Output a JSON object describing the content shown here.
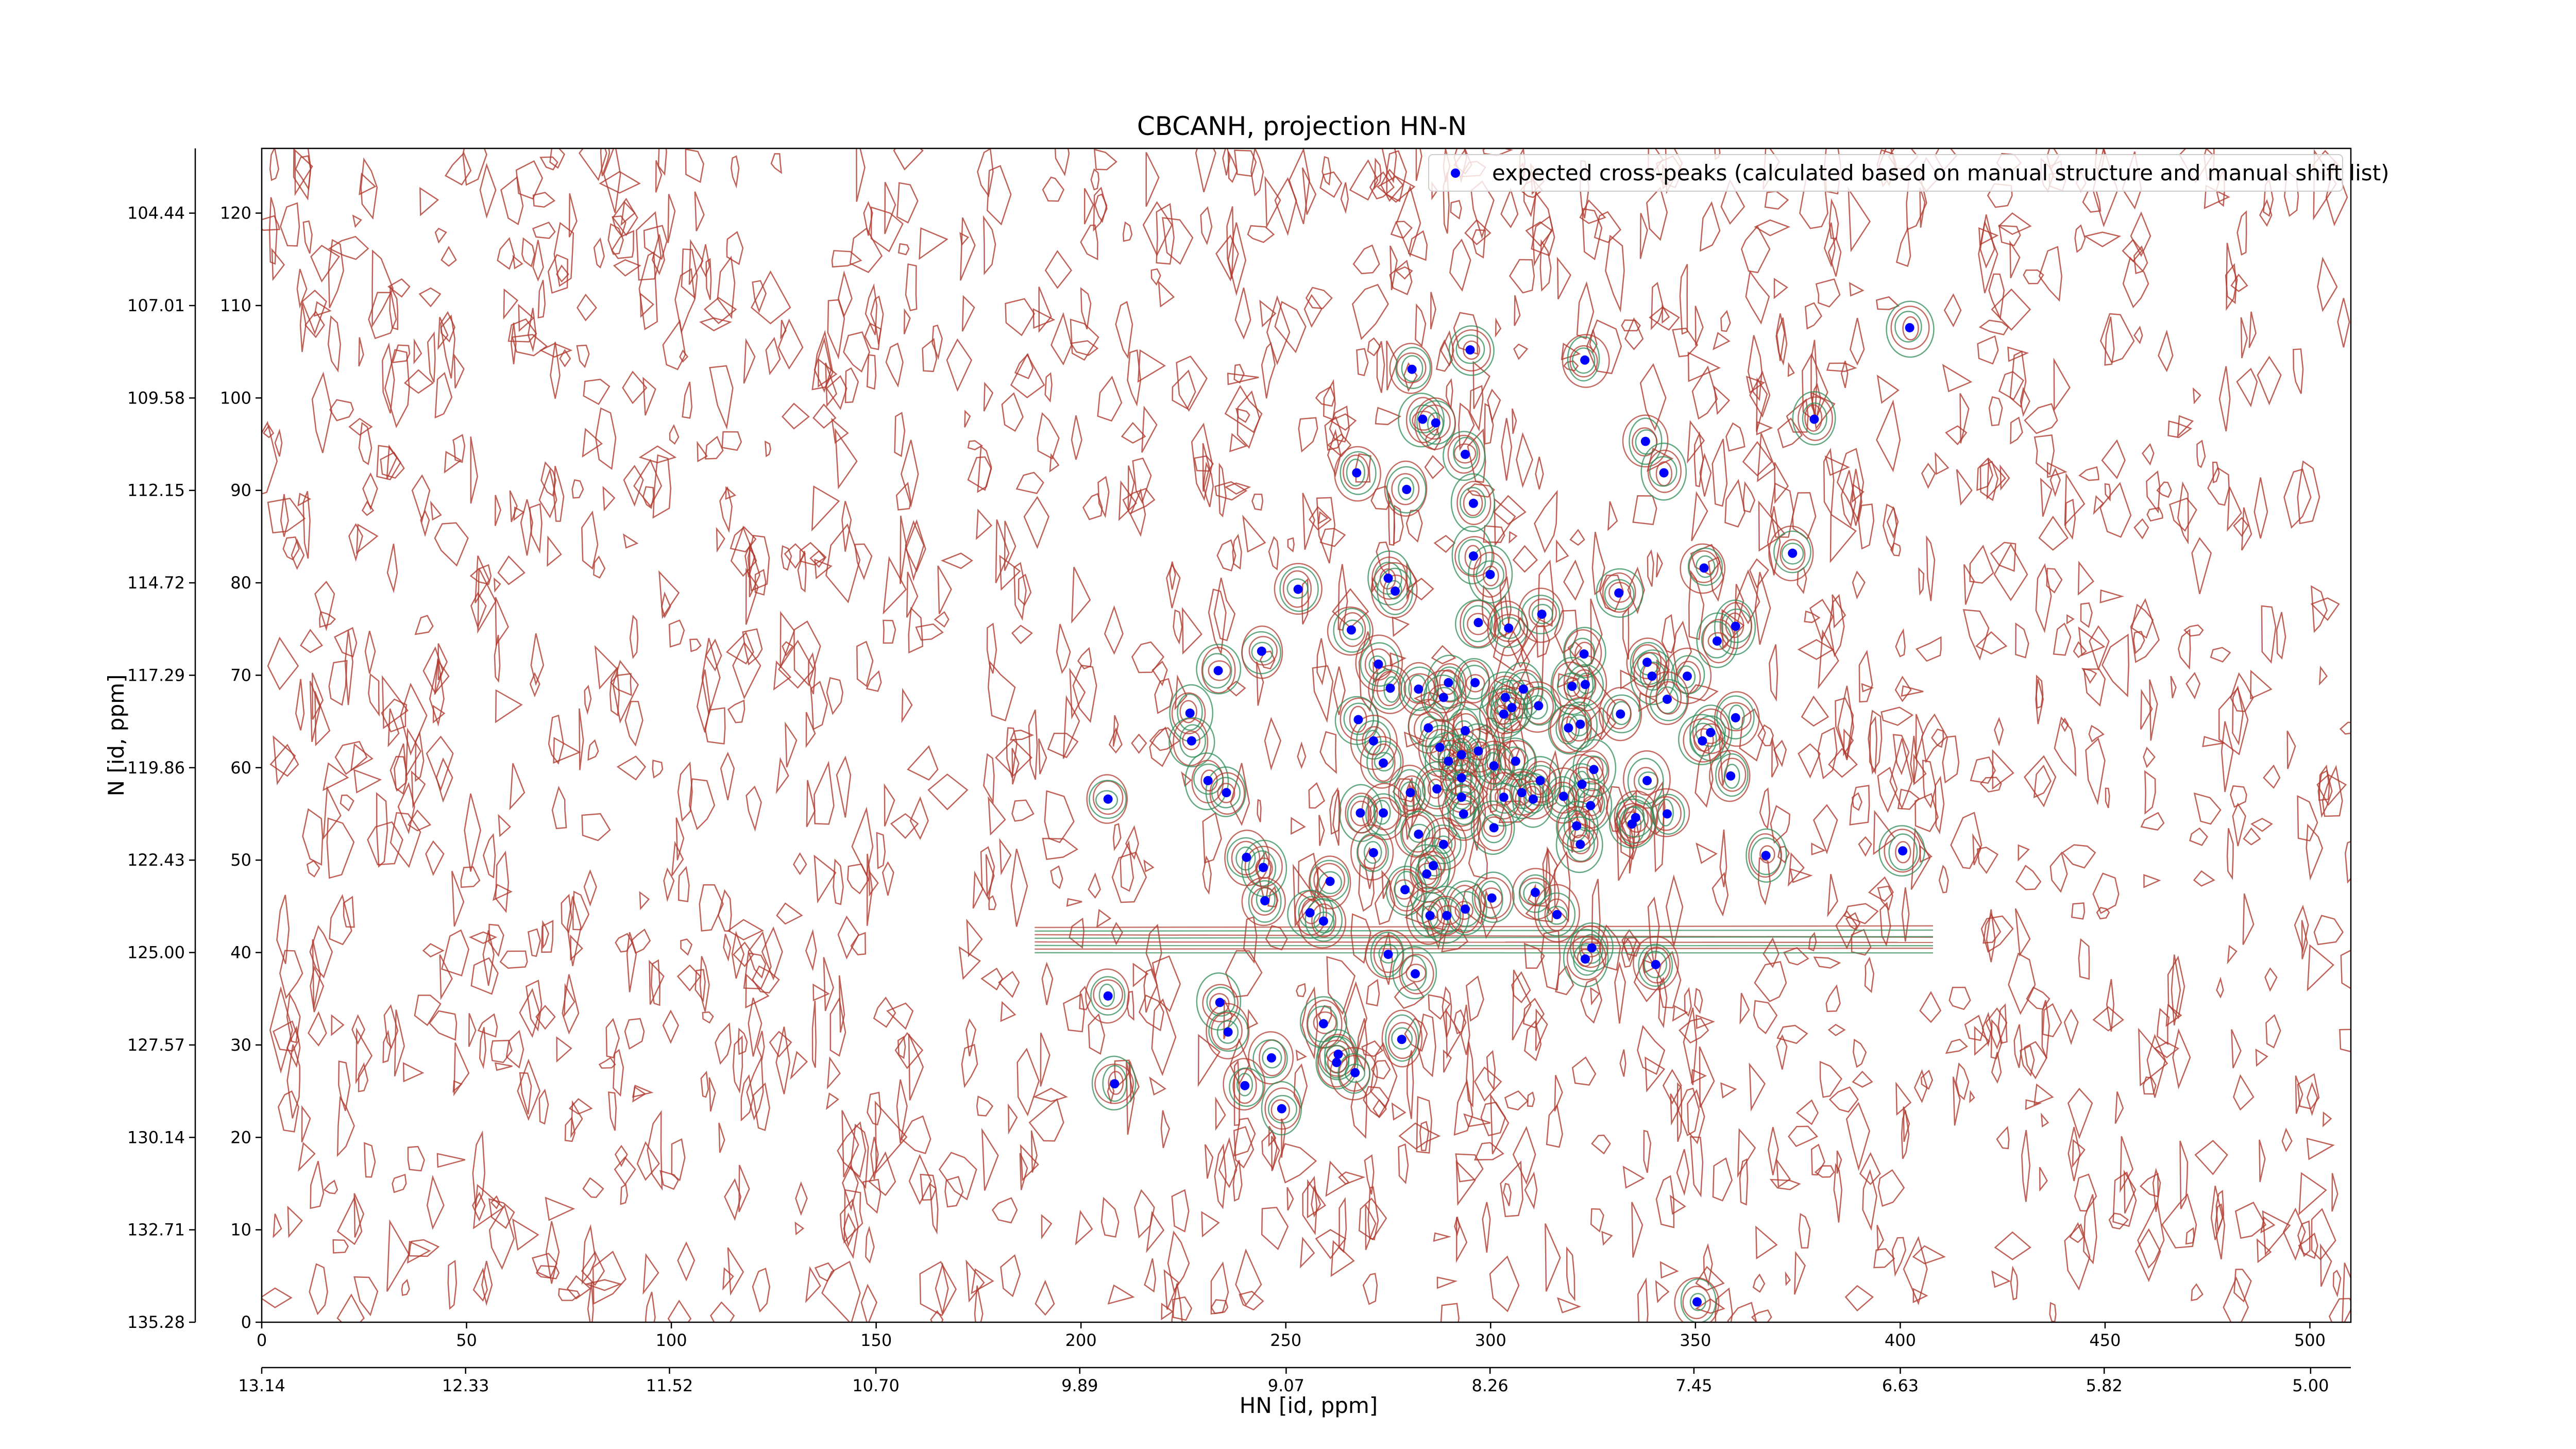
{
  "chart_data": {
    "type": "scatter",
    "title": "CBCANH, projection HN-N",
    "xlabel": "HN [id, ppm]",
    "ylabel": "N [id, ppm]",
    "legend": "upper right",
    "xlim": [
      0,
      510
    ],
    "ylim": [
      0,
      127
    ],
    "xticks": [
      0,
      50,
      100,
      150,
      200,
      250,
      300,
      350,
      400,
      450,
      500
    ],
    "yticks": [
      0,
      10,
      20,
      30,
      40,
      50,
      60,
      70,
      80,
      90,
      100,
      110,
      120
    ],
    "x2lim": [
      13.14,
      4.84
    ],
    "x2ticks": [
      13.14,
      12.33,
      11.52,
      {
        "value": 10.7,
        "label": "10.70"
      },
      9.89,
      9.07,
      8.26,
      7.45,
      6.63,
      5.82,
      {
        "value": 5,
        "label": "5.00"
      }
    ],
    "y2lim": [
      135.28,
      102.64
    ],
    "y2ticks": [
      135.28,
      132.71,
      130.14,
      127.57,
      {
        "value": 125,
        "label": "125.00"
      },
      122.43,
      119.86,
      117.29,
      114.72,
      112.15,
      109.58,
      107.01,
      104.44
    ],
    "x": [
      402.3,
      280.8,
      295.0,
      323.0,
      283.4,
      286.6,
      379.0,
      337.8,
      293.8,
      267.3,
      342.3,
      279.5,
      295.8,
      373.7,
      295.8,
      352.1,
      299.9,
      253.0,
      275.0,
      276.7,
      331.3,
      312.5,
      297.0,
      304.4,
      359.8,
      266.0,
      355.3,
      244.1,
      322.8,
      338.2,
      233.5,
      272.6,
      339.4,
      348.0,
      289.7,
      323.1,
      319.9,
      275.5,
      308.0,
      282.4,
      296.2,
      288.5,
      303.6,
      343.1,
      305.2,
      311.7,
      303.2,
      331.7,
      267.7,
      359.8,
      226.6,
      284.8,
      319.0,
      321.9,
      353.7,
      293.8,
      227.0,
      271.4,
      351.7,
      287.6,
      297.0,
      292.9,
      289.7,
      273.8,
      306.1,
      300.8,
      325.2,
      358.6,
      231.0,
      292.9,
      312.1,
      338.2,
      235.5,
      322.3,
      307.6,
      317.8,
      310.4,
      292.9,
      286.9,
      280.4,
      303.2,
      206.6,
      324.4,
      343.1,
      334.5,
      273.8,
      268.2,
      293.4,
      300.8,
      335.4,
      321.0,
      282.4,
      321.9,
      288.5,
      400.6,
      271.4,
      367.2,
      240.4,
      244.5,
      286.0,
      284.4,
      260.8,
      279.1,
      310.9,
      300.3,
      244.9,
      293.8,
      316.2,
      255.9,
      285.2,
      289.3,
      259.2,
      324.7,
      275.0,
      323.1,
      340.3,
      281.6,
      206.6,
      233.9,
      235.9,
      259.2,
      278.3,
      262.8,
      246.5,
      262.4,
      266.9,
      208.2,
      240.0,
      249.0,
      350.4
    ],
    "series": [
      {
        "name": "expected cross-peaks (calculated based on manual structure and manual shift list)",
        "color": "#0000ff",
        "values": [
          107.6,
          103.1,
          105.2,
          104.1,
          97.7,
          97.3,
          97.7,
          95.3,
          93.9,
          91.9,
          91.9,
          90.1,
          88.6,
          83.2,
          82.9,
          81.6,
          80.9,
          79.3,
          80.5,
          79.1,
          78.9,
          76.6,
          75.7,
          75.1,
          75.3,
          74.9,
          73.7,
          72.6,
          72.3,
          71.4,
          70.5,
          71.2,
          69.9,
          69.9,
          69.2,
          69.0,
          68.8,
          68.6,
          68.5,
          68.5,
          69.2,
          67.6,
          67.6,
          67.4,
          66.5,
          66.7,
          65.8,
          65.8,
          65.2,
          65.4,
          65.9,
          64.3,
          64.3,
          64.7,
          63.8,
          64.0,
          62.9,
          62.9,
          62.9,
          62.2,
          61.8,
          61.4,
          60.7,
          60.5,
          60.7,
          60.2,
          59.8,
          59.1,
          58.6,
          58.9,
          58.6,
          58.6,
          57.3,
          58.2,
          57.3,
          56.9,
          56.6,
          56.8,
          57.7,
          57.3,
          56.8,
          56.6,
          55.9,
          55.0,
          53.9,
          55.1,
          55.1,
          55.0,
          53.5,
          54.6,
          53.7,
          52.8,
          51.7,
          51.7,
          51.0,
          50.8,
          50.5,
          50.3,
          49.2,
          49.4,
          48.5,
          47.7,
          46.8,
          46.5,
          45.9,
          45.6,
          44.7,
          44.1,
          44.3,
          44.0,
          44.0,
          43.4,
          40.5,
          39.8,
          39.3,
          38.7,
          37.7,
          35.3,
          34.6,
          31.4,
          32.3,
          30.6,
          29.0,
          28.6,
          28.1,
          27.0,
          25.8,
          25.6,
          23.1,
          2.2
        ]
      }
    ]
  }
}
